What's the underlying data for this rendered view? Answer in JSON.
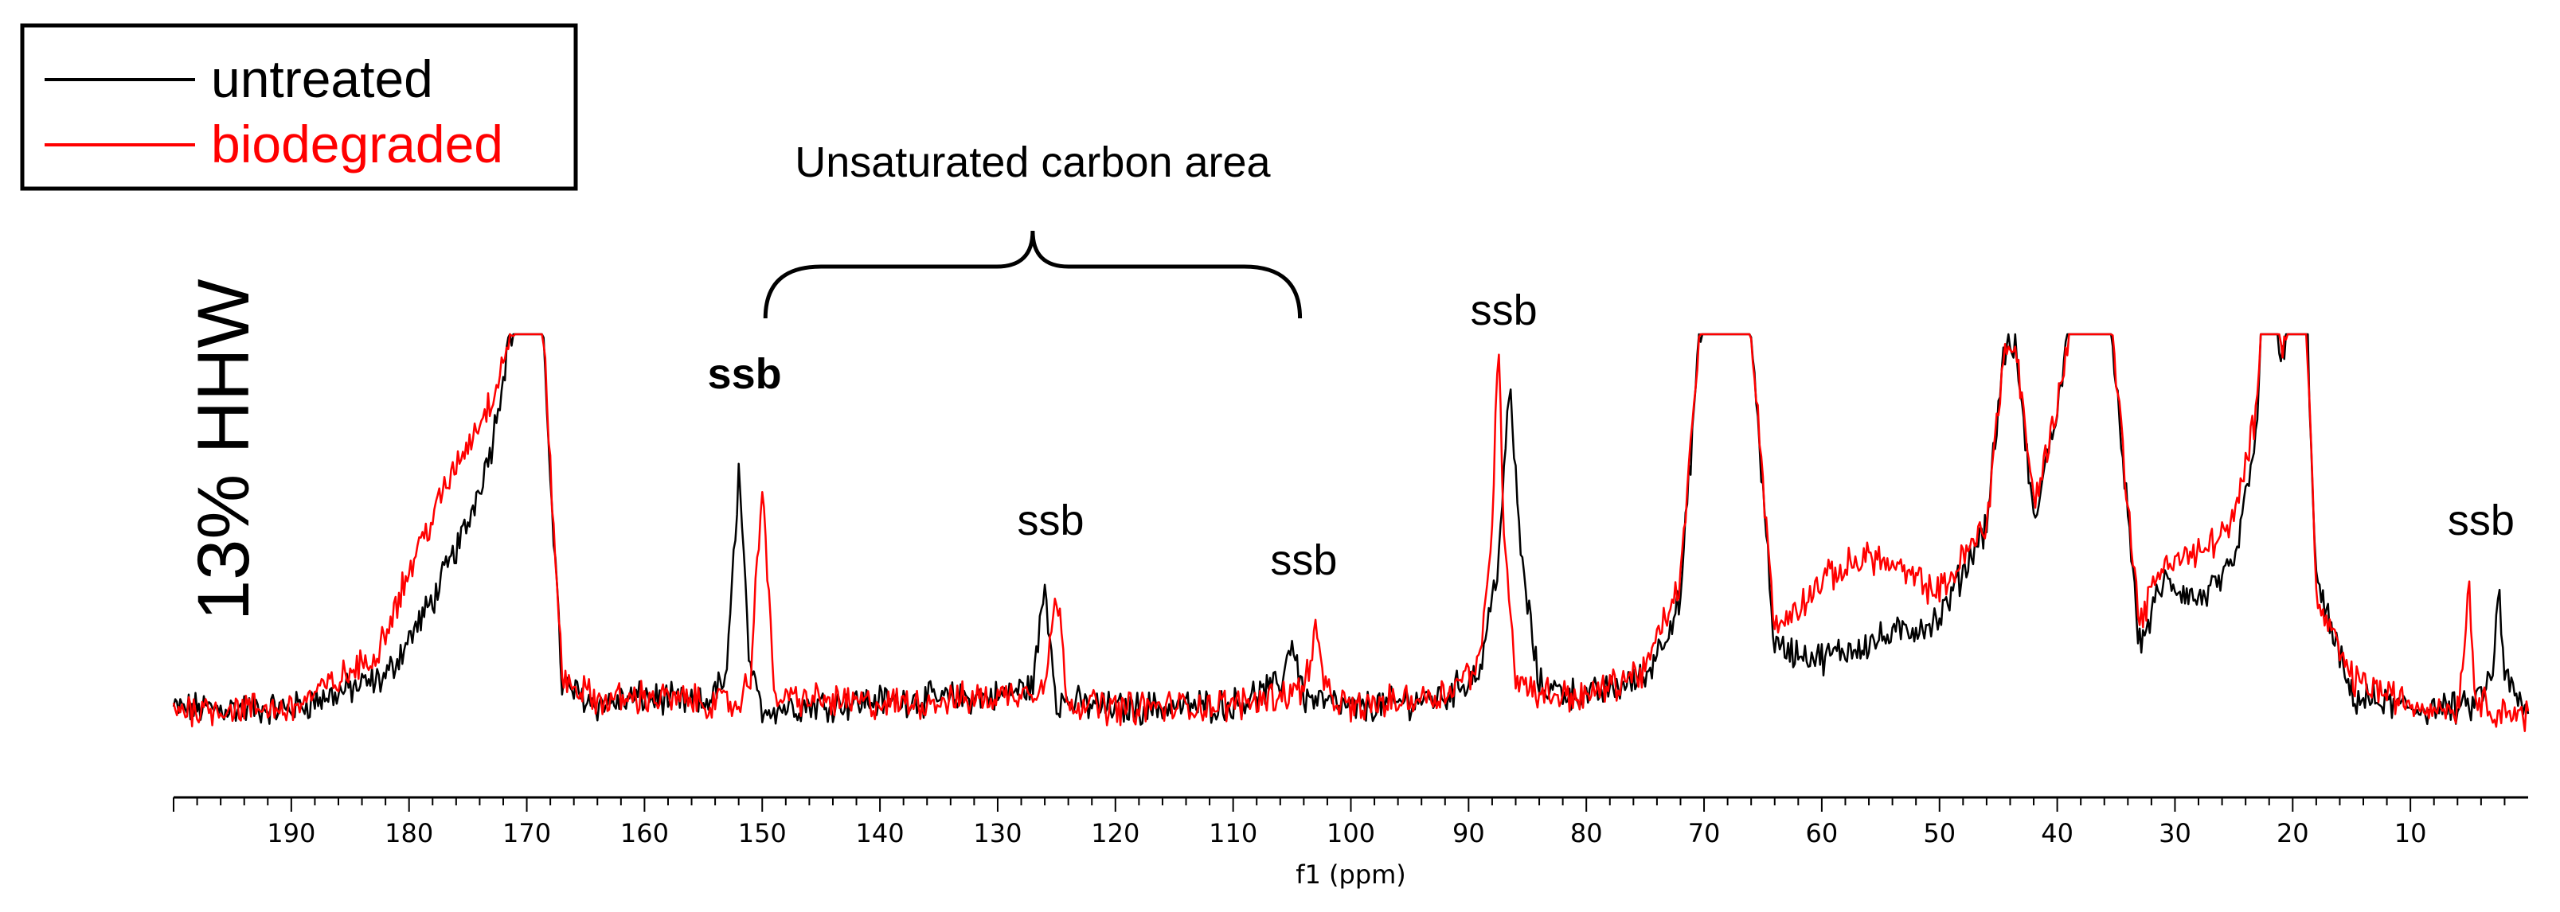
{
  "chart_data": {
    "type": "line",
    "title": "13% HHW",
    "xlabel": "f1 (ppm)",
    "ylabel": "",
    "xlim": [
      200,
      0
    ],
    "x_reversed": true,
    "y_clipped": true,
    "x_ticks": [
      190,
      180,
      170,
      160,
      150,
      140,
      130,
      120,
      110,
      100,
      90,
      80,
      70,
      60,
      50,
      40,
      30,
      20,
      10
    ],
    "legend": {
      "placement": "top-left",
      "entries": [
        {
          "label": "untreated",
          "color": "#000000"
        },
        {
          "label": "biodegraded",
          "color": "#ff0000"
        }
      ]
    },
    "series": [
      {
        "name": "untreated",
        "color": "#000000",
        "x": [
          200,
          190,
          182,
          178,
          175,
          173,
          171.5,
          169,
          167,
          164,
          160,
          155,
          153,
          152,
          151,
          150,
          140,
          130,
          127,
          126,
          125,
          120,
          110,
          106,
          105,
          104,
          100,
          92,
          89,
          87.5,
          86.5,
          85.5,
          84,
          80,
          75,
          72,
          70.5,
          69,
          68,
          66.5,
          64,
          60,
          55,
          50,
          46,
          44.5,
          43.5,
          42,
          40,
          38,
          36,
          33,
          31,
          28,
          25,
          23,
          22.5,
          22,
          21,
          19,
          18,
          15,
          10,
          5,
          3,
          2.5,
          2,
          0
        ],
        "y": [
          0.02,
          0.02,
          0.1,
          0.3,
          0.5,
          0.7,
          0.98,
          1.2,
          0.08,
          0.03,
          0.05,
          0.03,
          0.1,
          0.64,
          0.1,
          0.02,
          0.04,
          0.05,
          0.08,
          0.34,
          0.04,
          0.02,
          0.03,
          0.08,
          0.2,
          0.05,
          0.02,
          0.05,
          0.12,
          0.4,
          0.85,
          0.4,
          0.08,
          0.05,
          0.1,
          0.3,
          0.95,
          1.2,
          1.2,
          1.2,
          0.18,
          0.15,
          0.2,
          0.25,
          0.5,
          0.95,
          0.95,
          0.5,
          0.8,
          1.2,
          1.2,
          0.18,
          0.35,
          0.3,
          0.38,
          0.75,
          1.2,
          1.2,
          0.9,
          1.2,
          0.35,
          0.05,
          0.02,
          0.02,
          0.1,
          0.35,
          0.1,
          0.0
        ]
      },
      {
        "name": "biodegraded",
        "color": "#ff0000",
        "x": [
          200,
          190,
          183,
          179,
          176,
          173,
          171.5,
          169,
          167,
          164,
          160,
          152,
          151,
          150,
          149,
          140,
          130,
          126,
          125,
          124,
          120,
          110,
          104,
          103,
          102,
          100,
          92,
          89,
          88,
          87.5,
          87,
          86,
          84,
          80,
          75,
          72,
          70.5,
          69,
          68,
          66.5,
          64,
          60,
          56,
          50,
          46,
          44.5,
          43.5,
          42,
          40,
          38,
          36,
          33,
          31,
          28,
          25,
          23,
          22.5,
          22,
          21,
          19,
          18,
          15,
          10,
          6,
          5,
          4.5,
          3,
          0
        ],
        "y": [
          0.02,
          0.02,
          0.15,
          0.45,
          0.65,
          0.82,
          0.98,
          1.2,
          0.1,
          0.04,
          0.05,
          0.03,
          0.1,
          0.62,
          0.05,
          0.03,
          0.05,
          0.08,
          0.32,
          0.04,
          0.02,
          0.03,
          0.07,
          0.22,
          0.05,
          0.02,
          0.06,
          0.14,
          0.5,
          0.98,
          0.5,
          0.1,
          0.06,
          0.05,
          0.12,
          0.35,
          0.95,
          1.2,
          1.2,
          1.2,
          0.22,
          0.35,
          0.42,
          0.32,
          0.5,
          0.95,
          0.95,
          0.55,
          0.8,
          1.2,
          1.2,
          0.24,
          0.4,
          0.42,
          0.5,
          0.8,
          1.2,
          1.2,
          0.95,
          1.2,
          0.3,
          0.1,
          0.03,
          0.02,
          0.33,
          0.05,
          0.02,
          0.0
        ]
      }
    ],
    "annotations": [
      {
        "text": "ssb",
        "x": 151.5,
        "bold": true
      },
      {
        "text": "ssb",
        "x": 125.5,
        "bold": false
      },
      {
        "text": "ssb",
        "x": 104,
        "bold": false
      },
      {
        "text": "ssb",
        "x": 87,
        "bold": false
      },
      {
        "text": "ssb",
        "x": 4,
        "bold": false
      }
    ],
    "bracket": {
      "text": "Unsaturated carbon area",
      "x_start": 150,
      "x_end": 105
    }
  }
}
